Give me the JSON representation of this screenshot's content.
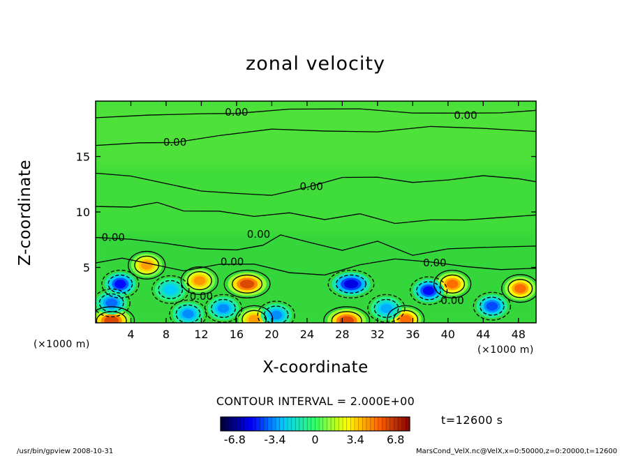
{
  "chart_data": {
    "type": "heatmap",
    "title": "zonal velocity",
    "xlabel": "X-coordinate",
    "ylabel": "Z-coordinate",
    "x_unit": "(×1000 m)",
    "y_unit": "(×1000 m)",
    "xlim": [
      0,
      50
    ],
    "ylim": [
      0,
      20
    ],
    "x_ticks": [
      4,
      8,
      12,
      16,
      20,
      24,
      28,
      32,
      36,
      40,
      44,
      48
    ],
    "y_ticks": [
      5,
      10,
      15
    ],
    "contour_interval_label": "CONTOUR INTERVAL = 2.000E+00",
    "contour_labels": [
      {
        "x": 16,
        "y": 19.0,
        "text": "0.00"
      },
      {
        "x": 42,
        "y": 18.7,
        "text": "0.00"
      },
      {
        "x": 9,
        "y": 16.3,
        "text": "0.00"
      },
      {
        "x": 24.5,
        "y": 12.3,
        "text": "0.00"
      },
      {
        "x": 2,
        "y": 7.7,
        "text": "0.00"
      },
      {
        "x": 18.5,
        "y": 8.0,
        "text": "0.00"
      },
      {
        "x": 15.5,
        "y": 5.5,
        "text": "0.00"
      },
      {
        "x": 38.5,
        "y": 5.4,
        "text": "0.00"
      },
      {
        "x": 12,
        "y": 2.4,
        "text": "0.00"
      },
      {
        "x": 40.5,
        "y": 2.0,
        "text": "0.00"
      }
    ],
    "extrema": [
      {
        "x": 17.2,
        "y": 3.5,
        "value": 7.0
      },
      {
        "x": 11.8,
        "y": 3.8,
        "value": 5.2
      },
      {
        "x": 40.5,
        "y": 3.5,
        "value": 6.0
      },
      {
        "x": 48.2,
        "y": 3.1,
        "value": 6.0
      },
      {
        "x": 5.8,
        "y": 5.2,
        "value": 5.0
      },
      {
        "x": 1.8,
        "y": 0.2,
        "value": 7.0
      },
      {
        "x": 28.5,
        "y": 0.2,
        "value": 7.0
      },
      {
        "x": 35.2,
        "y": 0.3,
        "value": 6.0
      },
      {
        "x": 18.0,
        "y": 0.3,
        "value": 5.0
      },
      {
        "x": 29.0,
        "y": 3.5,
        "value": -6.5
      },
      {
        "x": 37.8,
        "y": 2.9,
        "value": -6.0
      },
      {
        "x": 2.8,
        "y": 3.5,
        "value": -6.0
      },
      {
        "x": 45.0,
        "y": 1.5,
        "value": -5.0
      },
      {
        "x": 1.8,
        "y": 1.8,
        "value": -4.5
      },
      {
        "x": 20.5,
        "y": 0.7,
        "value": -4.0
      },
      {
        "x": 10.5,
        "y": 0.8,
        "value": -4.0
      },
      {
        "x": 33.0,
        "y": 1.3,
        "value": -3.5
      },
      {
        "x": 14.5,
        "y": 1.3,
        "value": -4.0
      },
      {
        "x": 8.5,
        "y": 3.0,
        "value": -3.0
      }
    ],
    "colorbar": {
      "ticks": [
        "-6.8",
        "-3.4",
        "0",
        "3.4",
        "6.8"
      ],
      "range": [
        -8,
        8
      ],
      "colors": [
        "#000033",
        "#0000ff",
        "#00ccff",
        "#33ff66",
        "#ffff00",
        "#ff6600",
        "#880000"
      ]
    },
    "time_label": "t=12600 s"
  },
  "footer": {
    "left": "/usr/bin/gpview   2008-10-31",
    "right": "MarsCond_VelX.nc@VelX,x=0:50000,z=0:20000,t=12600"
  }
}
